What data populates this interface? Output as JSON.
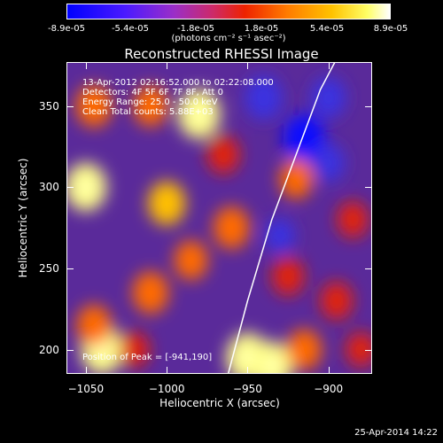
{
  "colorbar": {
    "ticks": [
      "-8.9e-05",
      "-5.4e-05",
      "-1.8e-05",
      "1.8e-05",
      "5.4e-05",
      "8.9e-05"
    ],
    "tick_values": [
      -8.9e-05,
      -5.4e-05,
      -1.8e-05,
      1.8e-05,
      5.4e-05,
      8.9e-05
    ],
    "range": [
      -8.9e-05,
      8.9e-05
    ],
    "unit": "(photons cm⁻² s⁻¹ asec⁻²)"
  },
  "chart_data": {
    "type": "heatmap",
    "title": "Reconstructed RHESSI Image",
    "xlabel": "Heliocentric X (arcsec)",
    "ylabel": "Heliocentric Y (arcsec)",
    "xlim": [
      -1062,
      -873
    ],
    "ylim": [
      185,
      377
    ],
    "xticks": [
      -1050,
      -1000,
      -950,
      -900
    ],
    "xtick_labels": [
      "−1050",
      "−1000",
      "−950",
      "−900"
    ],
    "yticks": [
      200,
      250,
      300,
      350
    ],
    "ytick_labels": [
      "200",
      "250",
      "300",
      "350"
    ],
    "annotations": [
      "13-Apr-2012 02:16:52.000 to 02:22:08.000",
      "Detectors: 4F 5F 6F 7F 8F, Att 0",
      "Energy Range: 25.0 - 50.0 keV",
      "Clean     Total counts: 5.88E+03"
    ],
    "peak_label": "Position of Peak = [-941,190]",
    "peak": [
      -941,
      190
    ],
    "limb": [
      [
        -962,
        185
      ],
      [
        -950,
        230
      ],
      [
        -935,
        280
      ],
      [
        -920,
        320
      ],
      [
        -905,
        360
      ],
      [
        -896,
        377
      ]
    ],
    "blobs": [
      {
        "x": -1040,
        "y": 200,
        "v": 1.0
      },
      {
        "x": -1045,
        "y": 215,
        "v": 0.7
      },
      {
        "x": -1010,
        "y": 235,
        "v": 0.75
      },
      {
        "x": -985,
        "y": 255,
        "v": 0.65
      },
      {
        "x": -1000,
        "y": 290,
        "v": 0.8
      },
      {
        "x": -1050,
        "y": 300,
        "v": 0.95
      },
      {
        "x": -1045,
        "y": 350,
        "v": 0.75
      },
      {
        "x": -1010,
        "y": 350,
        "v": 0.7
      },
      {
        "x": -980,
        "y": 345,
        "v": 1.0
      },
      {
        "x": -965,
        "y": 320,
        "v": 0.6
      },
      {
        "x": -960,
        "y": 275,
        "v": 0.75
      },
      {
        "x": -950,
        "y": 195,
        "v": 1.0
      },
      {
        "x": -935,
        "y": 190,
        "v": 0.95
      },
      {
        "x": -915,
        "y": 200,
        "v": 0.7
      },
      {
        "x": -925,
        "y": 245,
        "v": 0.6
      },
      {
        "x": -895,
        "y": 230,
        "v": 0.6
      },
      {
        "x": -885,
        "y": 280,
        "v": 0.55
      },
      {
        "x": -920,
        "y": 305,
        "v": 0.65
      },
      {
        "x": -880,
        "y": 200,
        "v": 0.5
      },
      {
        "x": -1020,
        "y": 200,
        "v": 0.5
      }
    ],
    "negative_blobs": [
      {
        "x": -915,
        "y": 330,
        "v": -1.0
      },
      {
        "x": -940,
        "y": 355,
        "v": -0.8
      },
      {
        "x": -900,
        "y": 355,
        "v": -0.7
      },
      {
        "x": -900,
        "y": 315,
        "v": -0.6
      },
      {
        "x": -930,
        "y": 270,
        "v": -0.5
      }
    ]
  },
  "footer": {
    "date": "25-Apr-2014 14:22"
  }
}
